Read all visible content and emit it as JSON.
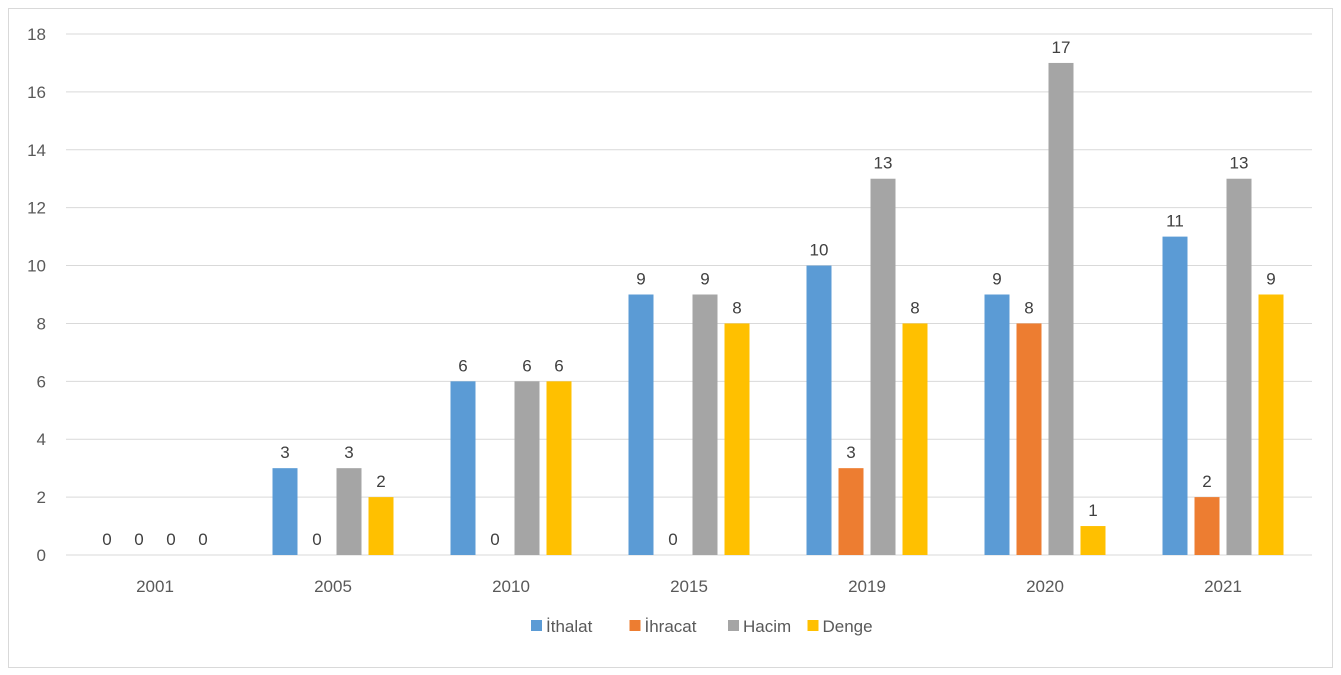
{
  "chart_data": {
    "type": "bar",
    "categories": [
      "2001",
      "2005",
      "2010",
      "2015",
      "2019",
      "2020",
      "2021"
    ],
    "series": [
      {
        "name": "İthalat",
        "color": "#5b9bd5",
        "values": [
          0,
          3,
          6,
          9,
          10,
          9,
          11
        ]
      },
      {
        "name": "İhracat",
        "color": "#ed7d31",
        "values": [
          0,
          0,
          0,
          0,
          3,
          8,
          2
        ]
      },
      {
        "name": "Hacim",
        "color": "#a5a5a5",
        "values": [
          0,
          3,
          6,
          9,
          13,
          17,
          13
        ]
      },
      {
        "name": "Denge",
        "color": "#ffc000",
        "values": [
          0,
          2,
          6,
          8,
          8,
          1,
          9
        ]
      }
    ],
    "ylim": [
      0,
      18
    ],
    "yticks": [
      0,
      2,
      4,
      6,
      8,
      10,
      12,
      14,
      16,
      18
    ],
    "grid": true,
    "legend": "bottom",
    "data_labels": true,
    "gridline_color": "#d9d9d9"
  }
}
